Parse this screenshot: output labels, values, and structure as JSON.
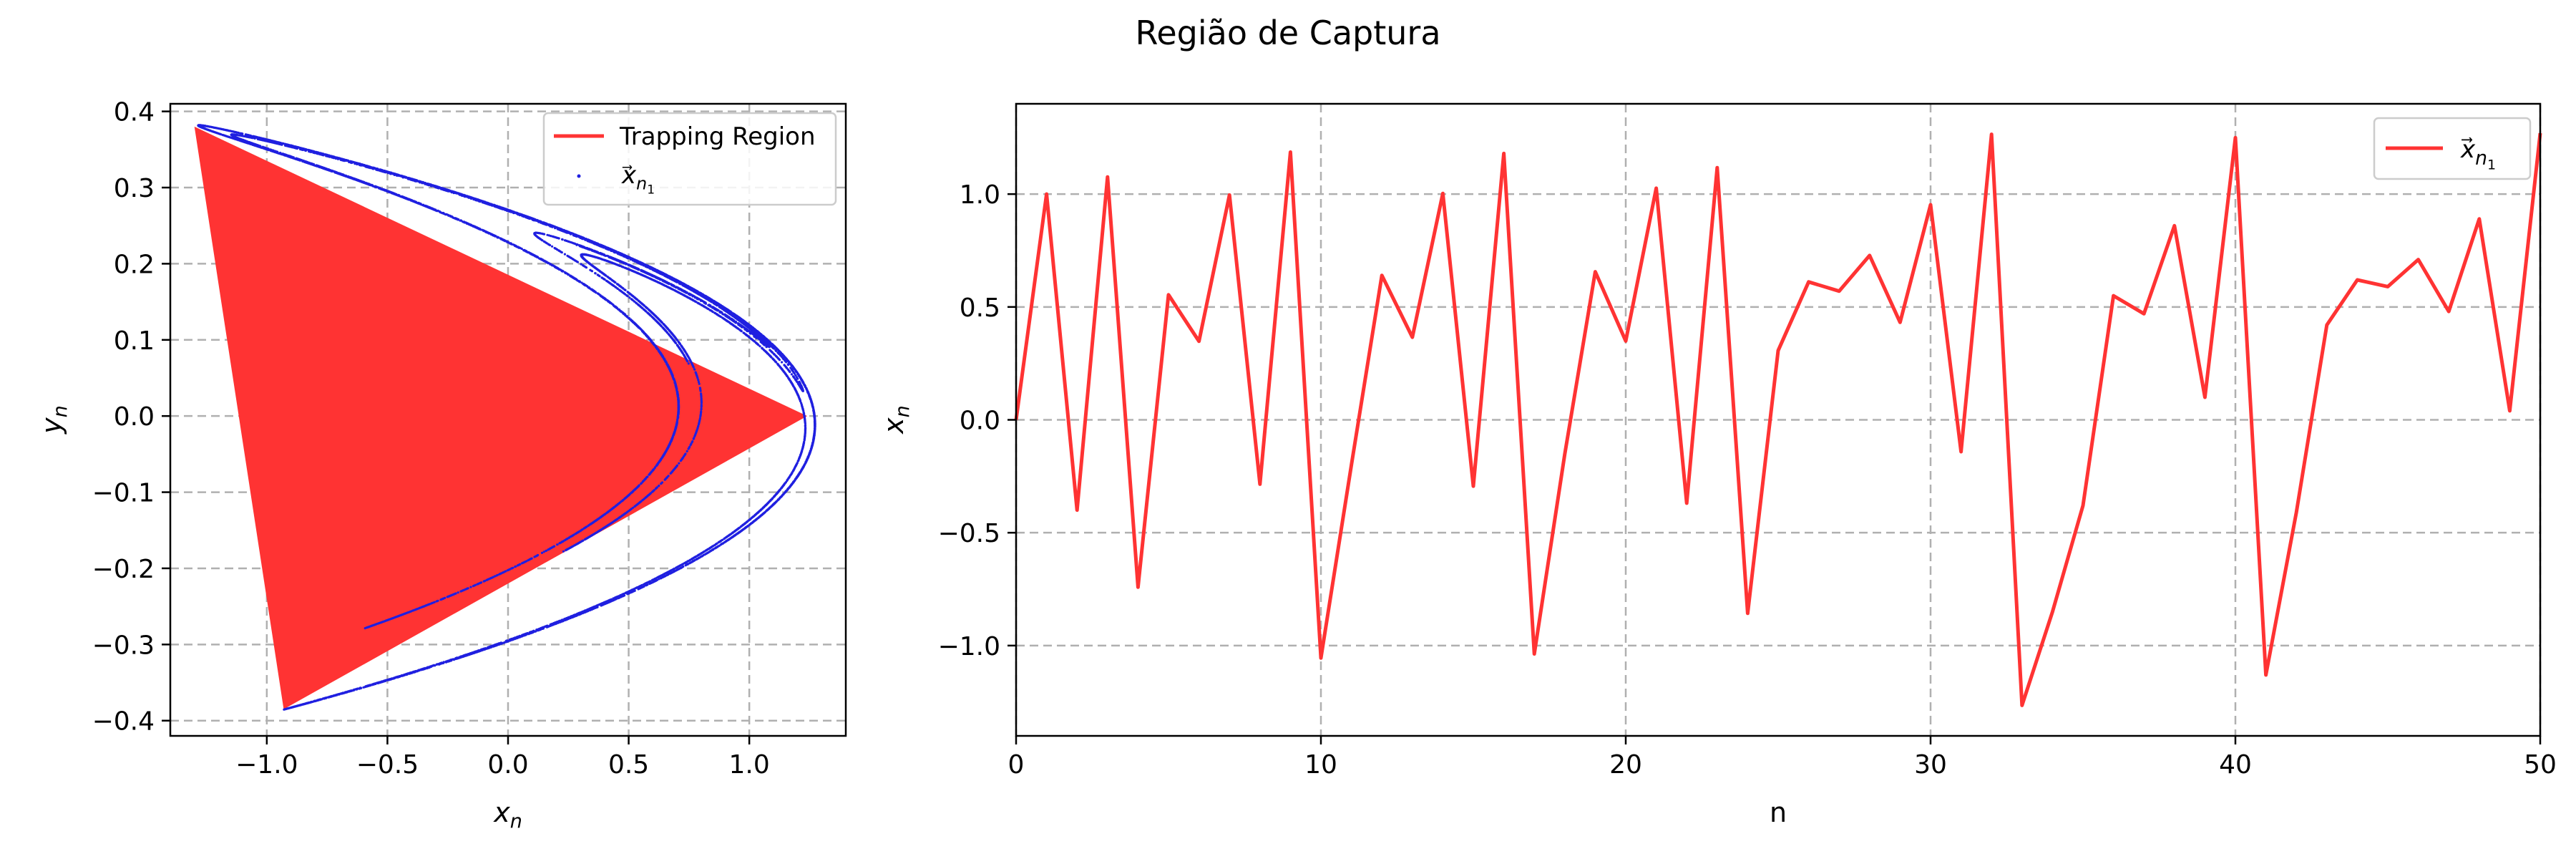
{
  "figure": {
    "title": "Região de Captura"
  },
  "chart_data": [
    {
      "type": "scatter",
      "xlabel_var": "x",
      "xlabel_sub": "n",
      "ylabel_var": "y",
      "ylabel_sub": "n",
      "xlim": [
        -1.4,
        1.4
      ],
      "ylim": [
        -0.42,
        0.41
      ],
      "x_ticks": [
        -1.0,
        -0.5,
        0.0,
        0.5,
        1.0
      ],
      "x_tick_labels": [
        "−1.0",
        "−0.5",
        "0.0",
        "0.5",
        "1.0"
      ],
      "y_ticks": [
        -0.4,
        -0.3,
        -0.2,
        -0.1,
        0.0,
        0.1,
        0.2,
        0.3,
        0.4
      ],
      "y_tick_labels": [
        "−0.4",
        "−0.3",
        "−0.2",
        "−0.1",
        "0.0",
        "0.1",
        "0.2",
        "0.3",
        "0.4"
      ],
      "grid": true,
      "legend_position": "top-right",
      "trapping_region": {
        "name": "Trapping Region",
        "color": "#ff3333",
        "vertices": [
          [
            -1.3,
            0.38
          ],
          [
            -0.93,
            -0.385
          ],
          [
            1.24,
            0.0
          ]
        ]
      },
      "attractor": {
        "name_base": "x",
        "name_sub": "n",
        "name_subsub": "1",
        "color": "#1f1fe0",
        "system": "henon",
        "a": 1.4,
        "b": 0.3,
        "initial_point": [
          0.0,
          0.0
        ],
        "points": 14000
      },
      "legend": [
        {
          "label": "Trapping Region",
          "kind": "line",
          "color": "#ff3333"
        },
        {
          "label_base": "x",
          "label_sub": "n",
          "label_subsub": "1",
          "kind": "marker",
          "color": "#1f1fe0"
        }
      ]
    },
    {
      "type": "line",
      "xlabel": "n",
      "ylabel_var": "x",
      "ylabel_sub": "n",
      "xlim": [
        0,
        50
      ],
      "ylim": [
        -1.4,
        1.4
      ],
      "x_ticks": [
        0,
        10,
        20,
        30,
        40,
        50
      ],
      "x_tick_labels": [
        "0",
        "10",
        "20",
        "30",
        "40",
        "50"
      ],
      "y_ticks": [
        -1.0,
        -0.5,
        0.0,
        0.5,
        1.0
      ],
      "y_tick_labels": [
        "−1.0",
        "−0.5",
        "0.0",
        "0.5",
        "1.0"
      ],
      "grid": true,
      "legend_position": "top-right",
      "series": [
        {
          "name_base": "x",
          "name_sub": "n",
          "name_subsub": "1",
          "color": "#ff3333",
          "x": [
            0,
            1,
            2,
            3,
            4,
            5,
            6,
            7,
            8,
            9,
            10,
            11,
            12,
            13,
            14,
            15,
            16,
            17,
            18,
            19,
            20,
            21,
            22,
            23,
            24,
            25,
            26,
            27,
            28,
            29,
            30,
            31,
            32,
            33,
            34,
            35,
            36,
            37,
            38,
            39,
            40,
            41,
            42,
            43,
            44,
            45,
            46,
            47,
            48,
            49,
            50
          ],
          "y": [
            0.0,
            1.0,
            -0.4,
            1.076,
            -0.741,
            0.554,
            0.348,
            0.996,
            -0.285,
            1.186,
            -1.055,
            -0.2,
            0.64,
            0.366,
            1.003,
            -0.294,
            1.18,
            -1.037,
            -0.152,
            0.656,
            0.349,
            1.026,
            -0.369,
            1.117,
            -0.857,
            0.307,
            0.611,
            0.57,
            0.728,
            0.432,
            0.953,
            -0.141,
            1.265,
            -1.265,
            -0.85,
            -0.38,
            0.55,
            0.47,
            0.86,
            0.1,
            1.25,
            -1.13,
            -0.41,
            0.42,
            0.62,
            0.59,
            0.71,
            0.48,
            0.89,
            0.04,
            1.27
          ]
        }
      ],
      "legend": [
        {
          "label_base": "x",
          "label_sub": "n",
          "label_subsub": "1",
          "kind": "line",
          "color": "#ff3333"
        }
      ]
    }
  ]
}
